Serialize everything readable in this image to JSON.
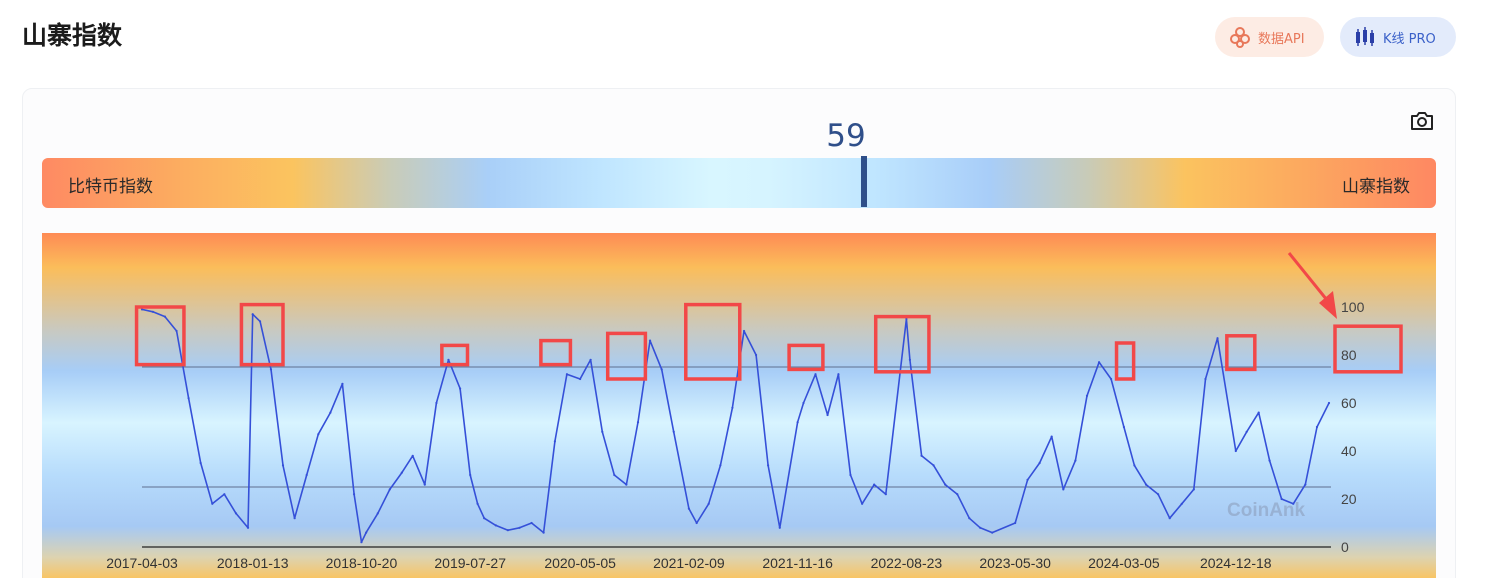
{
  "header": {
    "title": "山寨指数",
    "api_button": "数据API",
    "kline_button": "K线 PRO"
  },
  "gauge": {
    "value": "59",
    "left_label": "比特币指数",
    "right_label": "山寨指数",
    "position_pct": 59
  },
  "colors": {
    "line": "#3550d8",
    "highlight_box": "#f24848",
    "gauge_marker": "#2f4f8a",
    "reference_line": "#5f6f8f"
  },
  "watermark": "CoinAnk",
  "chart_data": {
    "type": "line",
    "title": "",
    "xlabel": "",
    "ylabel": "",
    "ylim": [
      0,
      100
    ],
    "yticks": [
      0,
      20,
      40,
      60,
      80,
      100
    ],
    "y_axis_side": "right",
    "xticks": [
      "2017-04-03",
      "2018-01-13",
      "2018-10-20",
      "2019-07-27",
      "2020-05-05",
      "2021-02-09",
      "2021-11-16",
      "2022-08-23",
      "2023-05-30",
      "2024-03-05",
      "2024-12-18"
    ],
    "reference_lines": [
      75,
      25
    ],
    "background": "vertical gradient: orange at top and bottom, light blue in middle",
    "series": [
      {
        "x": [
          "2017-04-03",
          "2017-05-01",
          "2017-06-01",
          "2017-07-01",
          "2017-08-01",
          "2017-09-01",
          "2017-10-01",
          "2017-11-01",
          "2017-12-01",
          "2018-01-01",
          "2018-01-13",
          "2018-02-01",
          "2018-03-01",
          "2018-04-01",
          "2018-05-01",
          "2018-06-01",
          "2018-07-01",
          "2018-08-01",
          "2018-09-01",
          "2018-10-01",
          "2018-10-20",
          "2018-11-01",
          "2018-12-01",
          "2019-01-01",
          "2019-02-01",
          "2019-03-01",
          "2019-04-01",
          "2019-05-01",
          "2019-06-01",
          "2019-07-01",
          "2019-07-27",
          "2019-08-15",
          "2019-09-01",
          "2019-10-01",
          "2019-11-01",
          "2019-12-01",
          "2020-01-01",
          "2020-02-01",
          "2020-03-01",
          "2020-04-01",
          "2020-05-05",
          "2020-06-01",
          "2020-07-01",
          "2020-08-01",
          "2020-09-01",
          "2020-10-01",
          "2020-11-01",
          "2020-12-01",
          "2021-01-01",
          "2021-02-09",
          "2021-03-01",
          "2021-04-01",
          "2021-05-01",
          "2021-06-01",
          "2021-07-01",
          "2021-08-01",
          "2021-09-01",
          "2021-10-01",
          "2021-11-16",
          "2021-12-01",
          "2022-01-01",
          "2022-02-01",
          "2022-03-01",
          "2022-04-01",
          "2022-05-01",
          "2022-06-01",
          "2022-07-01",
          "2022-08-23",
          "2022-09-01",
          "2022-10-01",
          "2022-11-01",
          "2022-12-01",
          "2023-01-01",
          "2023-02-01",
          "2023-03-01",
          "2023-04-01",
          "2023-05-30",
          "2023-07-01",
          "2023-08-01",
          "2023-09-01",
          "2023-10-01",
          "2023-11-01",
          "2023-12-01",
          "2024-01-01",
          "2024-02-01",
          "2024-03-05",
          "2024-04-01",
          "2024-05-01",
          "2024-06-01",
          "2024-07-01",
          "2024-08-01",
          "2024-09-01",
          "2024-10-01",
          "2024-11-01",
          "2024-12-18",
          "2025-01-15",
          "2025-02-15",
          "2025-03-15",
          "2025-04-15",
          "2025-05-15",
          "2025-06-15",
          "2025-07-15",
          "2025-08-15"
        ],
        "values": [
          99,
          98,
          96,
          90,
          62,
          35,
          18,
          22,
          14,
          8,
          97,
          94,
          74,
          34,
          12,
          30,
          47,
          56,
          68,
          22,
          2,
          6,
          14,
          24,
          31,
          38,
          26,
          60,
          78,
          66,
          30,
          18,
          12,
          9,
          7,
          8,
          10,
          6,
          44,
          72,
          70,
          78,
          48,
          30,
          26,
          52,
          86,
          74,
          48,
          16,
          10,
          18,
          34,
          58,
          90,
          80,
          34,
          8,
          52,
          60,
          72,
          55,
          72,
          30,
          18,
          26,
          22,
          95,
          78,
          38,
          34,
          26,
          22,
          12,
          8,
          6,
          10,
          28,
          35,
          46,
          24,
          36,
          63,
          77,
          70,
          50,
          34,
          26,
          22,
          12,
          18,
          24,
          70,
          87,
          40,
          48,
          56,
          36,
          20,
          18,
          26,
          50,
          60
        ]
      }
    ],
    "highlighted_peaks": [
      "2017-04 to 2017-07",
      "2018-01",
      "2019-06",
      "2020-02",
      "2020-08",
      "2021-02 to 2021-05",
      "2021-11",
      "2022-08",
      "2024-03",
      "2024-12",
      "current 80-100 zone"
    ]
  }
}
